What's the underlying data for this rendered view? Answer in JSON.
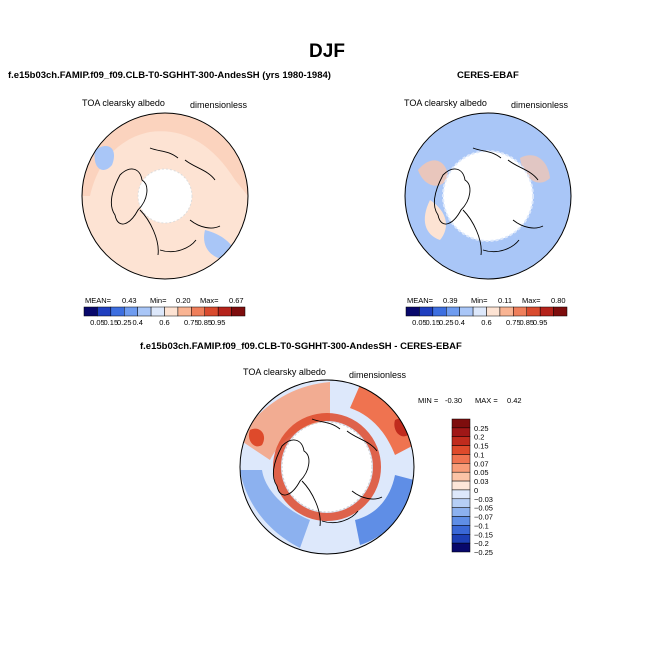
{
  "page_title": "DJF",
  "chart_data": [
    {
      "type": "polar-map",
      "title": "f.e15b03ch.FAMIP.f09_f09.CLB-T0-SGHHT-300-AndesSH (yrs 1980-1984)",
      "variable": "TOA clearsky albedo",
      "units": "dimensionless",
      "stats": {
        "mean_label": "MEAN=",
        "mean": "0.43",
        "min_label": "Min=",
        "min": "0.20",
        "max_label": "Max=",
        "max": "0.67"
      },
      "colorbar_levels": [
        "0.05",
        "0.15",
        "0.25",
        "0.4",
        "0.6",
        "0.75",
        "0.85",
        "0.95"
      ]
    },
    {
      "type": "polar-map",
      "title": "CERES-EBAF",
      "variable": "TOA clearsky albedo",
      "units": "dimensionless",
      "stats": {
        "mean_label": "MEAN=",
        "mean": "0.39",
        "min_label": "Min=",
        "min": "0.11",
        "max_label": "Max=",
        "max": "0.80"
      },
      "colorbar_levels": [
        "0.05",
        "0.15",
        "0.25",
        "0.4",
        "0.6",
        "0.75",
        "0.85",
        "0.95"
      ]
    },
    {
      "type": "polar-map",
      "title": "f.e15b03ch.FAMIP.f09_f09.CLB-T0-SGHHT-300-AndesSH - CERES-EBAF",
      "variable": "TOA clearsky albedo",
      "units": "dimensionless",
      "stats": {
        "min_label": "MIN =",
        "min": "-0.30",
        "max_label": "MAX =",
        "max": "0.42"
      },
      "colorbar_levels": [
        "0.25",
        "0.2",
        "0.15",
        "0.1",
        "0.07",
        "0.05",
        "0.03",
        "0",
        "-0.03",
        "-0.05",
        "-0.07",
        "-0.1",
        "-0.15",
        "-0.2",
        "-0.25"
      ]
    }
  ],
  "colors": {
    "horizontal_bar": [
      "#08086b",
      "#1f3fbf",
      "#3d6fe0",
      "#6f9cf0",
      "#a9c6f7",
      "#dde8fb",
      "#fde3d3",
      "#f9b493",
      "#ef7f5b",
      "#d94b2e",
      "#b5231b",
      "#7e0d0d"
    ],
    "vertical_bar": [
      "#7e0d0d",
      "#a01717",
      "#c02b1d",
      "#de4a2b",
      "#ef7350",
      "#f89c78",
      "#fbc3a6",
      "#fde6d8",
      "#dde8fb",
      "#b6cff6",
      "#8cb1ef",
      "#5f8ee6",
      "#3a68d6",
      "#1d3fb5",
      "#08086b"
    ]
  }
}
